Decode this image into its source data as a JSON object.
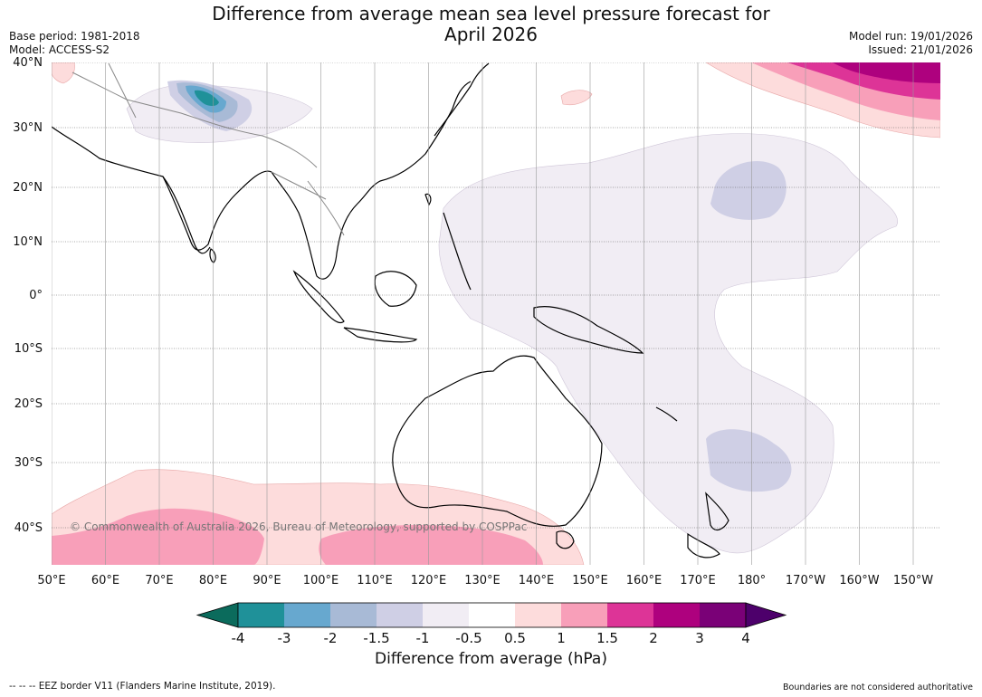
{
  "title_line1": "Difference from average mean sea level pressure forecast for",
  "title_line2": "April 2026",
  "meta_left": [
    "Base period: 1981-2018",
    "Model: ACCESS-S2"
  ],
  "meta_right": [
    "Model run: 19/01/2026",
    "Issued: 21/01/2026"
  ],
  "map": {
    "lon_labels": [
      "50°E",
      "60°E",
      "70°E",
      "80°E",
      "90°E",
      "100°E",
      "110°E",
      "120°E",
      "130°E",
      "140°E",
      "150°E",
      "160°E",
      "170°E",
      "180°",
      "170°W",
      "160°W",
      "150°W"
    ],
    "lat_labels": [
      "40°N",
      "30°N",
      "20°N",
      "10°N",
      "0°",
      "10°S",
      "20°S",
      "30°S",
      "40°S"
    ],
    "copyright": "© Commonwealth of Australia 2026, Bureau of Meteorology, supported by COSPPac"
  },
  "colorbar": {
    "ticks": [
      "-4",
      "-3",
      "-2",
      "-1.5",
      "-1",
      "-0.5",
      "0.5",
      "1",
      "1.5",
      "2",
      "3",
      "4"
    ],
    "colors": [
      "#0b6b5c",
      "#1f9199",
      "#67a8cf",
      "#a8bad6",
      "#cfcfe5",
      "#f1edf4",
      "#ffffff",
      "#fddcdc",
      "#f89fb9",
      "#dd3497",
      "#ae017e",
      "#7a0177",
      "#4d006b"
    ],
    "title": "Difference from average (hPa)"
  },
  "footer_left": "--  --  -- EEZ border V11 (Flanders Marine Institute, 2019).",
  "footer_right": "Boundaries are not considered authoritative"
}
